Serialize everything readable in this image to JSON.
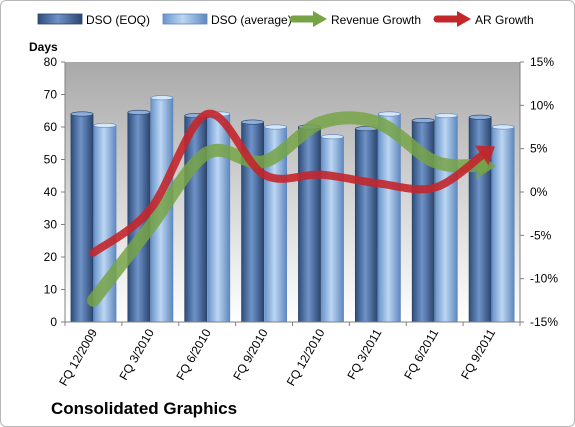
{
  "chart_data": {
    "type": "bar",
    "title": "",
    "company": "Consolidated Graphics",
    "ylabel_left": "Days",
    "ylim_left": [
      0,
      80
    ],
    "yticks_left": [
      "0",
      "10",
      "20",
      "30",
      "40",
      "50",
      "60",
      "70",
      "80"
    ],
    "ylim_right": [
      -15,
      15
    ],
    "yticks_right": [
      "-15%",
      "-10%",
      "-5%",
      "0%",
      "5%",
      "10%",
      "15%"
    ],
    "categories": [
      "FQ 12/2009",
      "FQ 3/2010",
      "FQ 6/2010",
      "FQ 9/2010",
      "FQ 12/2010",
      "FQ 3/2011",
      "FQ 6/2011",
      "FQ 9/2011"
    ],
    "legend_position": "top",
    "grid": false,
    "series": [
      {
        "name": "DSO (EOQ)",
        "type": "bar",
        "axis": "left",
        "color": "#4a6fa5",
        "values": [
          64,
          64.5,
          63.5,
          61.5,
          60,
          59.5,
          62,
          63
        ]
      },
      {
        "name": "DSO (average)",
        "type": "bar",
        "axis": "left",
        "color": "#8cb4e3",
        "values": [
          60.5,
          69,
          64,
          60,
          57,
          64,
          63.5,
          60
        ]
      },
      {
        "name": "Revenue Growth",
        "type": "line",
        "axis": "right",
        "color": "#77a347",
        "values": [
          -12.5,
          -4,
          4.5,
          3.5,
          8,
          8,
          3.5,
          3
        ]
      },
      {
        "name": "AR Growth",
        "type": "line",
        "axis": "right",
        "color": "#c3262b",
        "values": [
          -7,
          -2,
          9,
          2,
          2,
          1,
          0.5,
          5
        ]
      }
    ]
  }
}
